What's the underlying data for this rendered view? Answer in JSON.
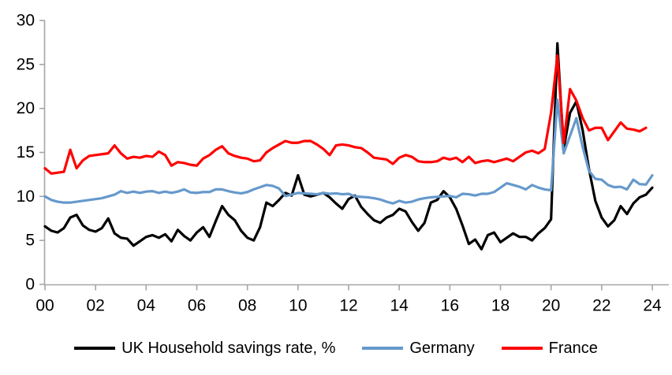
{
  "chart_data": {
    "type": "line",
    "title": "",
    "grid": false,
    "background": "#ffffff",
    "axis_color": "#A6A6A6",
    "label_color": "#000000",
    "legend_position": "bottom",
    "x_axis": {
      "unit": "year (quarterly data)",
      "start": 2000,
      "end": 2024.25,
      "tick_step_years": 2,
      "tick_labels": [
        "00",
        "02",
        "04",
        "06",
        "08",
        "10",
        "12",
        "14",
        "16",
        "18",
        "20",
        "22",
        "24"
      ]
    },
    "y_axis": {
      "min": 0,
      "max": 30,
      "tick_interval": 5,
      "tick_labels": [
        "0",
        "5",
        "10",
        "15",
        "20",
        "25",
        "30"
      ]
    },
    "series": [
      {
        "id": "uk",
        "name": "UK Household savings rate, %",
        "color": "#000000",
        "start": "2000Q1",
        "end": "2024Q1",
        "values": [
          6.6,
          6.1,
          5.9,
          6.4,
          7.6,
          7.9,
          6.7,
          6.2,
          6.0,
          6.4,
          7.5,
          5.8,
          5.3,
          5.2,
          4.4,
          4.9,
          5.4,
          5.6,
          5.3,
          5.7,
          4.9,
          6.2,
          5.5,
          5.0,
          5.9,
          6.5,
          5.4,
          7.2,
          8.9,
          7.9,
          7.3,
          6.1,
          5.3,
          5.0,
          6.5,
          9.3,
          8.9,
          9.6,
          10.4,
          10.1,
          12.4,
          10.2,
          10.0,
          10.2,
          10.4,
          9.9,
          9.2,
          8.6,
          9.7,
          10.1,
          8.8,
          8.0,
          7.3,
          7.0,
          7.6,
          7.9,
          8.6,
          8.3,
          7.1,
          6.1,
          7.0,
          9.3,
          9.6,
          10.6,
          9.9,
          8.6,
          6.7,
          4.6,
          5.1,
          4.0,
          5.6,
          5.9,
          4.8,
          5.3,
          5.8,
          5.4,
          5.4,
          5.0,
          5.8,
          6.4,
          7.4,
          27.4,
          15.4,
          19.5,
          20.8,
          17.5,
          13.1,
          9.5,
          7.6,
          6.6,
          7.3,
          8.9,
          8.0,
          9.2,
          9.9,
          10.2,
          11.0
        ]
      },
      {
        "id": "germany",
        "name": "Germany",
        "color": "#6699CC",
        "start": "2000Q1",
        "end": "2024Q1",
        "values": [
          10.0,
          9.6,
          9.4,
          9.3,
          9.3,
          9.4,
          9.5,
          9.6,
          9.7,
          9.8,
          10.0,
          10.2,
          10.6,
          10.4,
          10.55,
          10.4,
          10.55,
          10.6,
          10.4,
          10.55,
          10.4,
          10.55,
          10.8,
          10.45,
          10.4,
          10.5,
          10.5,
          10.8,
          10.8,
          10.6,
          10.45,
          10.35,
          10.5,
          10.8,
          11.05,
          11.3,
          11.2,
          10.9,
          10.05,
          10.2,
          10.4,
          10.35,
          10.3,
          10.25,
          10.4,
          10.3,
          10.35,
          10.25,
          10.3,
          10.0,
          9.95,
          9.9,
          9.8,
          9.65,
          9.4,
          9.2,
          9.5,
          9.3,
          9.4,
          9.65,
          9.8,
          9.9,
          9.95,
          10.0,
          10.05,
          9.9,
          10.3,
          10.25,
          10.1,
          10.3,
          10.3,
          10.5,
          11.0,
          11.5,
          11.3,
          11.1,
          10.8,
          11.3,
          11.0,
          10.8,
          10.7,
          21.0,
          14.9,
          16.9,
          18.9,
          15.6,
          12.9,
          12.0,
          11.9,
          11.3,
          11.05,
          11.1,
          10.8,
          11.9,
          11.4,
          11.35,
          12.4
        ]
      },
      {
        "id": "france",
        "name": "France",
        "color": "#FF0000",
        "start": "2000Q1",
        "end": "2023Q4",
        "values": [
          13.2,
          12.6,
          12.7,
          12.8,
          15.3,
          13.2,
          14.1,
          14.6,
          14.7,
          14.8,
          14.9,
          15.8,
          14.9,
          14.3,
          14.5,
          14.4,
          14.6,
          14.5,
          15.1,
          14.7,
          13.5,
          13.9,
          13.8,
          13.6,
          13.5,
          14.3,
          14.7,
          15.3,
          15.7,
          14.9,
          14.6,
          14.4,
          14.3,
          14.0,
          14.1,
          15.0,
          15.5,
          15.9,
          16.3,
          16.1,
          16.1,
          16.3,
          16.3,
          15.9,
          15.4,
          14.7,
          15.8,
          15.9,
          15.8,
          15.6,
          15.5,
          15.0,
          14.4,
          14.3,
          14.2,
          13.7,
          14.4,
          14.7,
          14.5,
          14.0,
          13.9,
          13.9,
          14.0,
          14.4,
          14.2,
          14.4,
          13.9,
          14.5,
          13.8,
          14.0,
          14.1,
          13.9,
          14.1,
          14.3,
          14.0,
          14.5,
          15.0,
          15.2,
          14.9,
          15.4,
          19.5,
          26.0,
          16.1,
          22.2,
          20.9,
          18.9,
          17.5,
          17.8,
          17.8,
          16.4,
          17.4,
          18.4,
          17.7,
          17.6,
          17.4,
          17.8
        ]
      }
    ]
  }
}
